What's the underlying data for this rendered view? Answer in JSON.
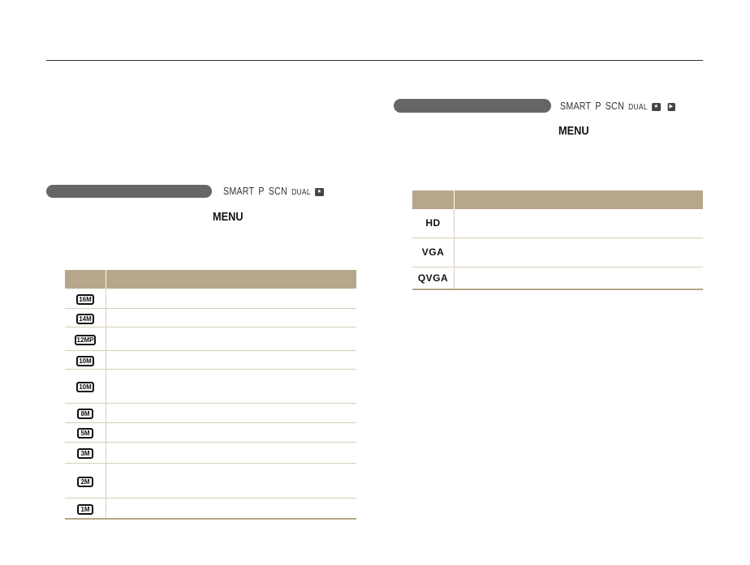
{
  "left_section": {
    "modes": [
      "SMART",
      "P",
      "SCN",
      "DUAL",
      "camera"
    ],
    "menu_label": "MENU",
    "rows": [
      {
        "icon": "16M",
        "h": 24
      },
      {
        "icon": "14M",
        "h": 23
      },
      {
        "icon": "12MP",
        "h": 29
      },
      {
        "icon": "10M",
        "h": 23
      },
      {
        "icon": "10M",
        "h": 42
      },
      {
        "icon": "8M",
        "h": 24
      },
      {
        "icon": "5M",
        "h": 24
      },
      {
        "icon": "3M",
        "h": 26
      },
      {
        "icon": "2M",
        "h": 43
      },
      {
        "icon": "1M",
        "h": 26
      }
    ]
  },
  "right_section": {
    "modes": [
      "SMART",
      "P",
      "SCN",
      "DUAL",
      "camera",
      "movie"
    ],
    "menu_label": "MENU",
    "rows": [
      {
        "icon": "HD",
        "h": 35
      },
      {
        "icon": "VGA",
        "h": 36
      },
      {
        "icon": "QVGA",
        "h": 28
      }
    ]
  },
  "colors": {
    "header": "#b6a68a",
    "pill": "#666666"
  }
}
